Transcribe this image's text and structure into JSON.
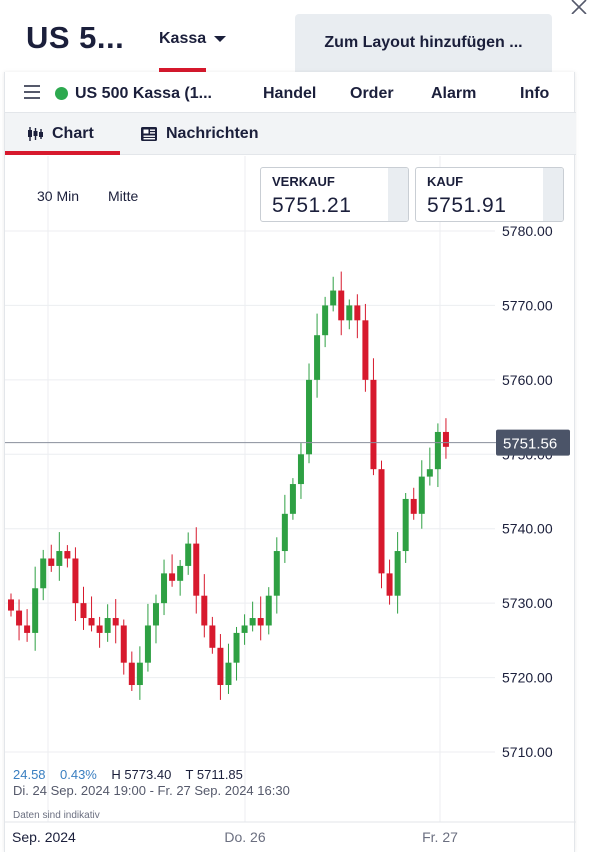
{
  "header": {
    "instrument_title": "US 5...",
    "type_select": "Kassa",
    "layout_button": "Zum Layout hinzufügen ..."
  },
  "panel": {
    "instrument": "US 500 Kassa (1...",
    "menu": [
      "Handel",
      "Order",
      "Alarm",
      "Info"
    ],
    "tabs": [
      {
        "label": "Chart",
        "icon": "candlestick-icon",
        "active": true
      },
      {
        "label": "Nachrichten",
        "icon": "newspaper-icon",
        "active": false
      }
    ],
    "status_color": "#2da94f"
  },
  "chart_controls": {
    "interval": "30 Min",
    "price_type": "Mitte"
  },
  "quotes": {
    "sell_label": "VERKAUF",
    "sell_value": "5751.21",
    "buy_label": "KAUF",
    "buy_value": "5751.91"
  },
  "stats": {
    "change": "24.58",
    "change_pct": "0.43%",
    "high": "H 5773.40",
    "low": "T 5711.85",
    "range": "Di. 24 Sep. 2024 19:00 - Fr. 27 Sep. 2024 16:30",
    "disclaimer": "Daten sind indikativ"
  },
  "colors": {
    "up": "#2ea043",
    "down": "#d7192d",
    "accent": "#d7192d",
    "last_price_tag": "#4b5468"
  },
  "chart_data": {
    "type": "candlestick",
    "y_ticks": [
      "5780.00",
      "5770.00",
      "5760.00",
      "5750.00",
      "5740.00",
      "5730.00",
      "5720.00",
      "5710.00"
    ],
    "ylim": [
      5707,
      5781
    ],
    "x_labels": [
      "Sep. 2024",
      "Do. 26",
      "Fr. 27"
    ],
    "last_price": "5751.56",
    "closes": [
      5729,
      5727,
      5726,
      5732,
      5736,
      5735,
      5737,
      5736,
      5730,
      5728,
      5727,
      5726,
      5728,
      5727,
      5722,
      5719,
      5722,
      5727,
      5730,
      5734,
      5733,
      5735,
      5738,
      5731,
      5727,
      5724,
      5719,
      5722,
      5726,
      5727,
      5728,
      5727,
      5731,
      5737,
      5742,
      5746,
      5750,
      5760,
      5766,
      5770,
      5772,
      5768,
      5770,
      5768,
      5760,
      5748,
      5734,
      5731,
      5737,
      5744,
      5742,
      5747,
      5748,
      5753,
      5751
    ]
  }
}
